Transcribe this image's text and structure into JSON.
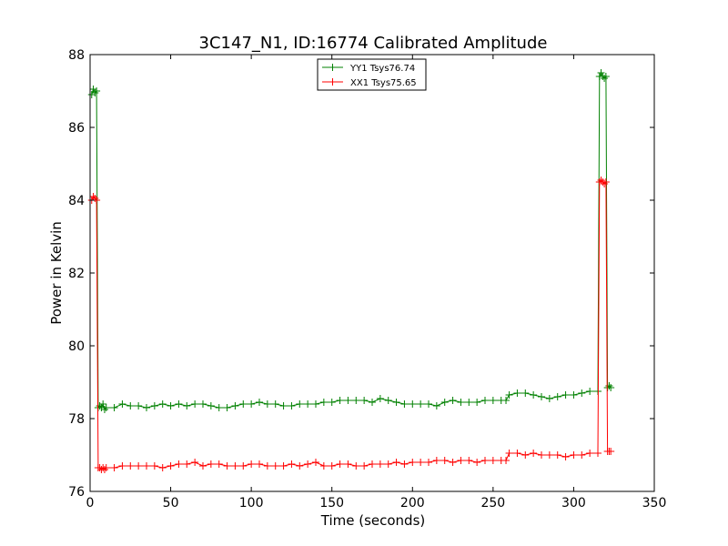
{
  "chart_data": {
    "type": "line",
    "title": "3C147_N1, ID:16774 Calibrated Amplitude",
    "xlabel": "Time (seconds)",
    "ylabel": "Power in Kelvin",
    "xlim": [
      0,
      350
    ],
    "ylim": [
      76,
      88
    ],
    "xticks": [
      0,
      50,
      100,
      150,
      200,
      250,
      300,
      350
    ],
    "yticks": [
      76,
      78,
      80,
      82,
      84,
      86,
      88
    ],
    "grid": false,
    "legend_position": "top-center",
    "marker": "plus",
    "series": [
      {
        "name": "YY1 Tsys76.74",
        "color": "#008000",
        "points": [
          [
            1,
            86.9
          ],
          [
            2,
            87.05
          ],
          [
            3,
            86.95
          ],
          [
            4,
            87.0
          ],
          [
            5,
            78.3
          ],
          [
            6,
            78.35
          ],
          [
            7,
            78.3
          ],
          [
            8,
            78.4
          ],
          [
            9,
            78.25
          ],
          [
            10,
            78.3
          ],
          [
            15,
            78.3
          ],
          [
            20,
            78.4
          ],
          [
            25,
            78.35
          ],
          [
            30,
            78.35
          ],
          [
            35,
            78.3
          ],
          [
            40,
            78.35
          ],
          [
            45,
            78.4
          ],
          [
            50,
            78.35
          ],
          [
            55,
            78.4
          ],
          [
            60,
            78.35
          ],
          [
            65,
            78.4
          ],
          [
            70,
            78.4
          ],
          [
            75,
            78.35
          ],
          [
            80,
            78.3
          ],
          [
            85,
            78.3
          ],
          [
            90,
            78.35
          ],
          [
            95,
            78.4
          ],
          [
            100,
            78.4
          ],
          [
            105,
            78.45
          ],
          [
            110,
            78.4
          ],
          [
            115,
            78.4
          ],
          [
            120,
            78.35
          ],
          [
            125,
            78.35
          ],
          [
            130,
            78.4
          ],
          [
            135,
            78.4
          ],
          [
            140,
            78.4
          ],
          [
            145,
            78.45
          ],
          [
            150,
            78.45
          ],
          [
            155,
            78.5
          ],
          [
            160,
            78.5
          ],
          [
            165,
            78.5
          ],
          [
            170,
            78.5
          ],
          [
            175,
            78.45
          ],
          [
            180,
            78.55
          ],
          [
            185,
            78.5
          ],
          [
            190,
            78.45
          ],
          [
            195,
            78.4
          ],
          [
            200,
            78.4
          ],
          [
            205,
            78.4
          ],
          [
            210,
            78.4
          ],
          [
            215,
            78.35
          ],
          [
            220,
            78.45
          ],
          [
            225,
            78.5
          ],
          [
            230,
            78.45
          ],
          [
            235,
            78.45
          ],
          [
            240,
            78.45
          ],
          [
            245,
            78.5
          ],
          [
            250,
            78.5
          ],
          [
            255,
            78.5
          ],
          [
            258,
            78.5
          ],
          [
            260,
            78.65
          ],
          [
            265,
            78.7
          ],
          [
            270,
            78.7
          ],
          [
            275,
            78.65
          ],
          [
            280,
            78.6
          ],
          [
            285,
            78.55
          ],
          [
            290,
            78.6
          ],
          [
            295,
            78.65
          ],
          [
            300,
            78.65
          ],
          [
            305,
            78.7
          ],
          [
            310,
            78.75
          ],
          [
            315,
            78.75
          ],
          [
            316,
            87.4
          ],
          [
            317,
            87.5
          ],
          [
            318,
            87.4
          ],
          [
            319,
            87.35
          ],
          [
            320,
            87.4
          ],
          [
            321,
            78.85
          ],
          [
            322,
            78.9
          ],
          [
            323,
            78.85
          ]
        ]
      },
      {
        "name": "XX1 Tsys75.65",
        "color": "#ff0000",
        "points": [
          [
            1,
            84.0
          ],
          [
            2,
            84.1
          ],
          [
            3,
            84.05
          ],
          [
            4,
            84.0
          ],
          [
            5,
            76.65
          ],
          [
            6,
            76.65
          ],
          [
            7,
            76.6
          ],
          [
            8,
            76.65
          ],
          [
            9,
            76.6
          ],
          [
            10,
            76.65
          ],
          [
            15,
            76.65
          ],
          [
            20,
            76.7
          ],
          [
            25,
            76.7
          ],
          [
            30,
            76.7
          ],
          [
            35,
            76.7
          ],
          [
            40,
            76.7
          ],
          [
            45,
            76.65
          ],
          [
            50,
            76.7
          ],
          [
            55,
            76.75
          ],
          [
            60,
            76.75
          ],
          [
            65,
            76.8
          ],
          [
            70,
            76.7
          ],
          [
            75,
            76.75
          ],
          [
            80,
            76.75
          ],
          [
            85,
            76.7
          ],
          [
            90,
            76.7
          ],
          [
            95,
            76.7
          ],
          [
            100,
            76.75
          ],
          [
            105,
            76.75
          ],
          [
            110,
            76.7
          ],
          [
            115,
            76.7
          ],
          [
            120,
            76.7
          ],
          [
            125,
            76.75
          ],
          [
            130,
            76.7
          ],
          [
            135,
            76.75
          ],
          [
            140,
            76.8
          ],
          [
            145,
            76.7
          ],
          [
            150,
            76.7
          ],
          [
            155,
            76.75
          ],
          [
            160,
            76.75
          ],
          [
            165,
            76.7
          ],
          [
            170,
            76.7
          ],
          [
            175,
            76.75
          ],
          [
            180,
            76.75
          ],
          [
            185,
            76.75
          ],
          [
            190,
            76.8
          ],
          [
            195,
            76.75
          ],
          [
            200,
            76.8
          ],
          [
            205,
            76.8
          ],
          [
            210,
            76.8
          ],
          [
            215,
            76.85
          ],
          [
            220,
            76.85
          ],
          [
            225,
            76.8
          ],
          [
            230,
            76.85
          ],
          [
            235,
            76.85
          ],
          [
            240,
            76.8
          ],
          [
            245,
            76.85
          ],
          [
            250,
            76.85
          ],
          [
            255,
            76.85
          ],
          [
            258,
            76.85
          ],
          [
            260,
            77.05
          ],
          [
            265,
            77.05
          ],
          [
            270,
            77.0
          ],
          [
            275,
            77.05
          ],
          [
            280,
            77.0
          ],
          [
            285,
            77.0
          ],
          [
            290,
            77.0
          ],
          [
            295,
            76.95
          ],
          [
            300,
            77.0
          ],
          [
            305,
            77.0
          ],
          [
            310,
            77.05
          ],
          [
            315,
            77.05
          ],
          [
            316,
            84.5
          ],
          [
            317,
            84.55
          ],
          [
            318,
            84.5
          ],
          [
            319,
            84.45
          ],
          [
            320,
            84.5
          ],
          [
            321,
            77.1
          ],
          [
            322,
            77.1
          ],
          [
            323,
            77.1
          ]
        ]
      }
    ]
  }
}
